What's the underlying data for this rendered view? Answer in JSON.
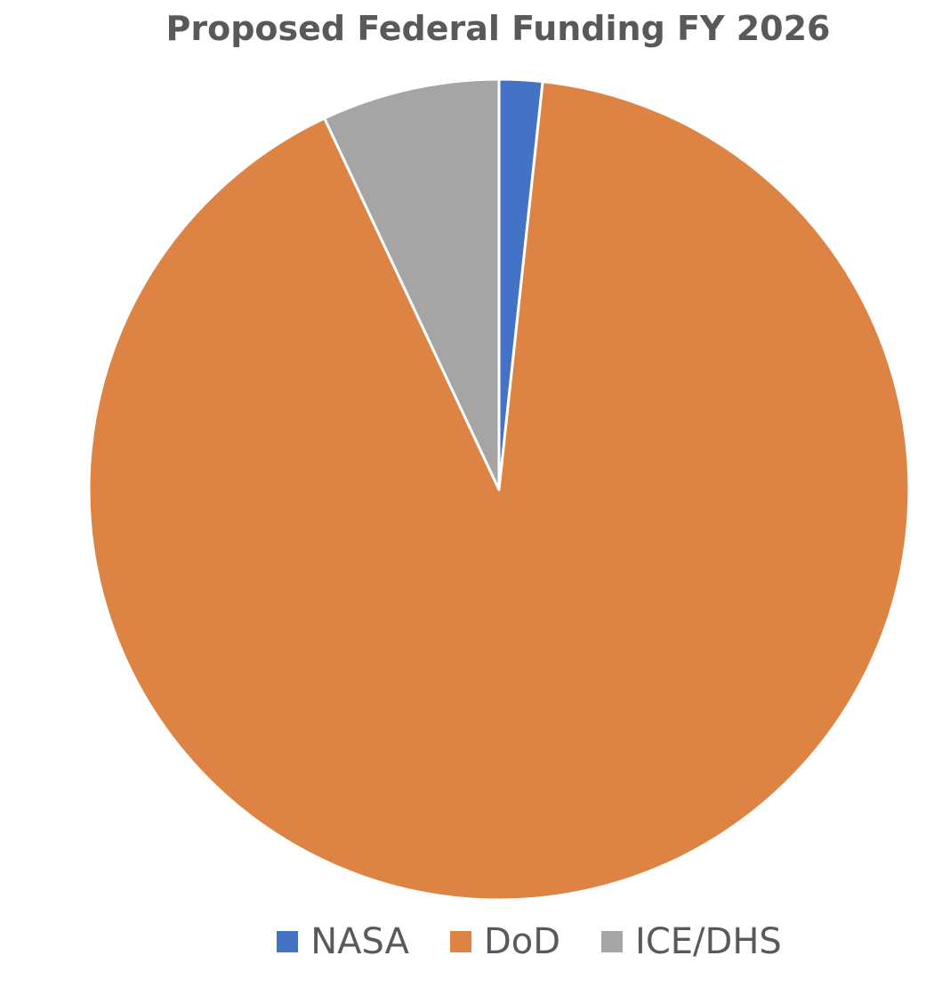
{
  "chart_data": {
    "type": "pie",
    "title": "Proposed Federal Funding FY 2026",
    "start_angle_deg": 0,
    "direction": "clockwise",
    "slices": [
      {
        "label": "NASA",
        "value": 1.7,
        "color": "#4472C4"
      },
      {
        "label": "DoD",
        "value": 91.3,
        "color": "#DD8344"
      },
      {
        "label": "ICE/DHS",
        "value": 7.0,
        "color": "#A5A5A5"
      }
    ],
    "legend": "bottom",
    "slice_border_color": "#FFFFFF"
  }
}
